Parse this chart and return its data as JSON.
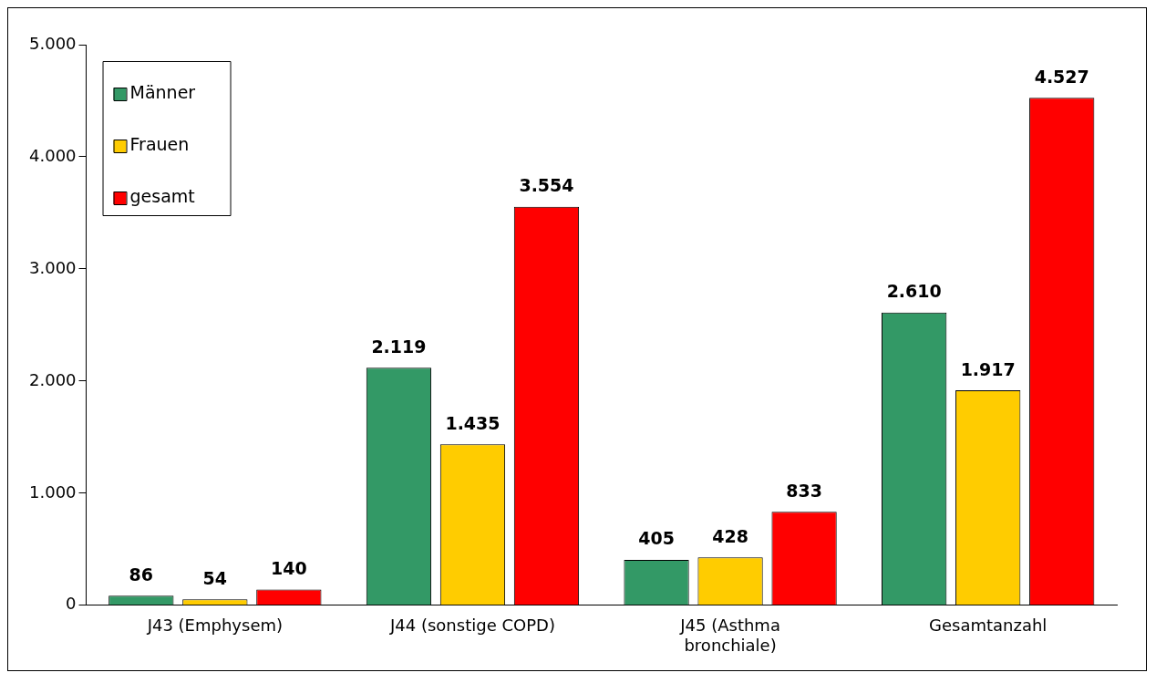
{
  "chart_data": {
    "type": "bar",
    "categories": [
      "J43 (Emphysem)",
      "J44 (sonstige COPD)",
      "J45 (Asthma bronchiale)",
      "Gesamtanzahl"
    ],
    "series": [
      {
        "name": "Männer",
        "color": "#339966",
        "values": [
          86,
          2119,
          405,
          2610
        ],
        "value_labels": [
          "86",
          "2.119",
          "405",
          "2.610"
        ]
      },
      {
        "name": "Frauen",
        "color": "#ffcc00",
        "values": [
          54,
          1435,
          428,
          1917
        ],
        "value_labels": [
          "54",
          "1.435",
          "428",
          "1.917"
        ]
      },
      {
        "name": "gesamt",
        "color": "#ff0000",
        "values": [
          140,
          3554,
          833,
          4527
        ],
        "value_labels": [
          "140",
          "3.554",
          "833",
          "4.527"
        ]
      }
    ],
    "ylim": [
      0,
      5000
    ],
    "yticks": [
      {
        "value": 0,
        "label": "0"
      },
      {
        "value": 1000,
        "label": "1.000"
      },
      {
        "value": 2000,
        "label": "2.000"
      },
      {
        "value": 3000,
        "label": "3.000"
      },
      {
        "value": 4000,
        "label": "4.000"
      },
      {
        "value": 5000,
        "label": "5.000"
      }
    ],
    "grid": false,
    "legend": "top left"
  }
}
